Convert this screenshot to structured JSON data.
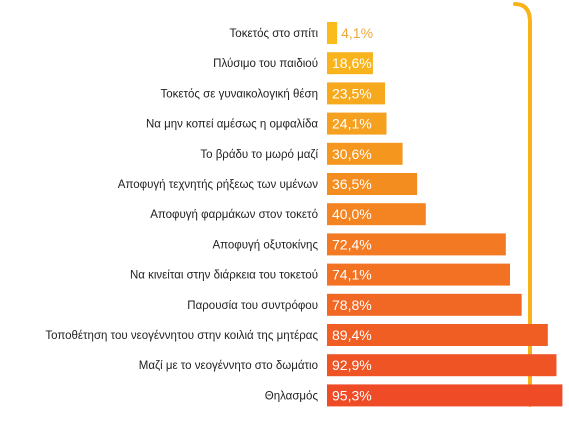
{
  "chart_data": {
    "type": "bar",
    "orientation": "horizontal",
    "title": "",
    "xlabel": "",
    "ylabel": "",
    "xlim": [
      0,
      100
    ],
    "grid": false,
    "legend": "none",
    "categories": [
      "Τοκετός στο σπίτι",
      "Πλύσιμο του παιδιού",
      "Τοκετός σε γυναικολογική θέση",
      "Να μην κοπεί αμέσως η ομφαλίδα",
      "Το βράδυ το μωρό μαζί",
      "Αποφυγή τεχνητής ρήξεως των υμένων",
      "Αποφυγή φαρμάκων στον τοκετό",
      "Αποφυγή οξυτοκίνης",
      "Να κινείται στην διάρκεια του τοκετού",
      "Παρουσία του συντρόφου",
      "Τοποθέτηση του νεογέννητου στην κοιλιά της μητέρας",
      "Μαζί με το νεογέννητο στο δωμάτιο",
      "Θηλασμός"
    ],
    "values": [
      4.1,
      18.6,
      23.5,
      24.1,
      30.6,
      36.5,
      40.0,
      72.4,
      74.1,
      78.8,
      89.4,
      92.9,
      95.3
    ],
    "value_labels": [
      "4,1%",
      "18,6%",
      "23,5%",
      "24,1%",
      "30,6%",
      "36,5%",
      "40,0%",
      "72,4%",
      "74,1%",
      "78,8%",
      "89,4%",
      "92,9%",
      "95,3%"
    ],
    "colors": {
      "bar_top": "#f9bc1c",
      "bar_bottom": "#ee4b26",
      "bracket": "#f8b21a",
      "light_label": "#f0a63a"
    }
  }
}
